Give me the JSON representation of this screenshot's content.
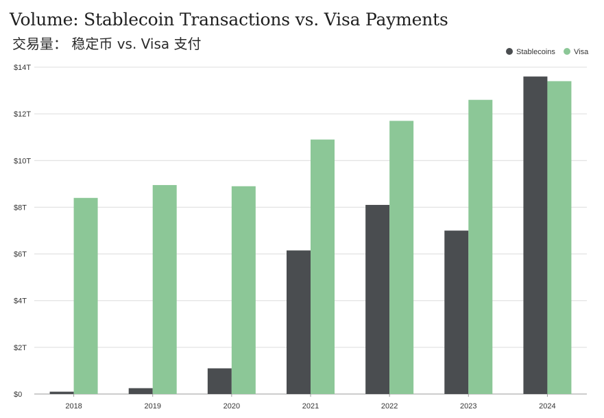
{
  "title": "Volume: Stablecoin Transactions vs. Visa Payments",
  "subtitle": "交易量： 稳定币 vs. Visa 支付",
  "chart_data": {
    "type": "bar",
    "categories": [
      "2018",
      "2019",
      "2020",
      "2021",
      "2022",
      "2023",
      "2024"
    ],
    "series": [
      {
        "name": "Stablecoins",
        "color": "#4a4d50",
        "values": [
          0.1,
          0.25,
          1.1,
          6.15,
          8.1,
          7.0,
          13.6
        ]
      },
      {
        "name": "Visa",
        "color": "#8cc797",
        "values": [
          8.4,
          8.95,
          8.9,
          10.9,
          11.7,
          12.6,
          13.4
        ]
      }
    ],
    "ylim": [
      0,
      14
    ],
    "yticks": [
      0,
      2,
      4,
      6,
      8,
      10,
      12,
      14
    ],
    "ytick_labels": [
      "$0",
      "$2T",
      "$4T",
      "$6T",
      "$8T",
      "$10T",
      "$12T",
      "$14T"
    ],
    "grid": true,
    "legend_position": "top-right"
  }
}
